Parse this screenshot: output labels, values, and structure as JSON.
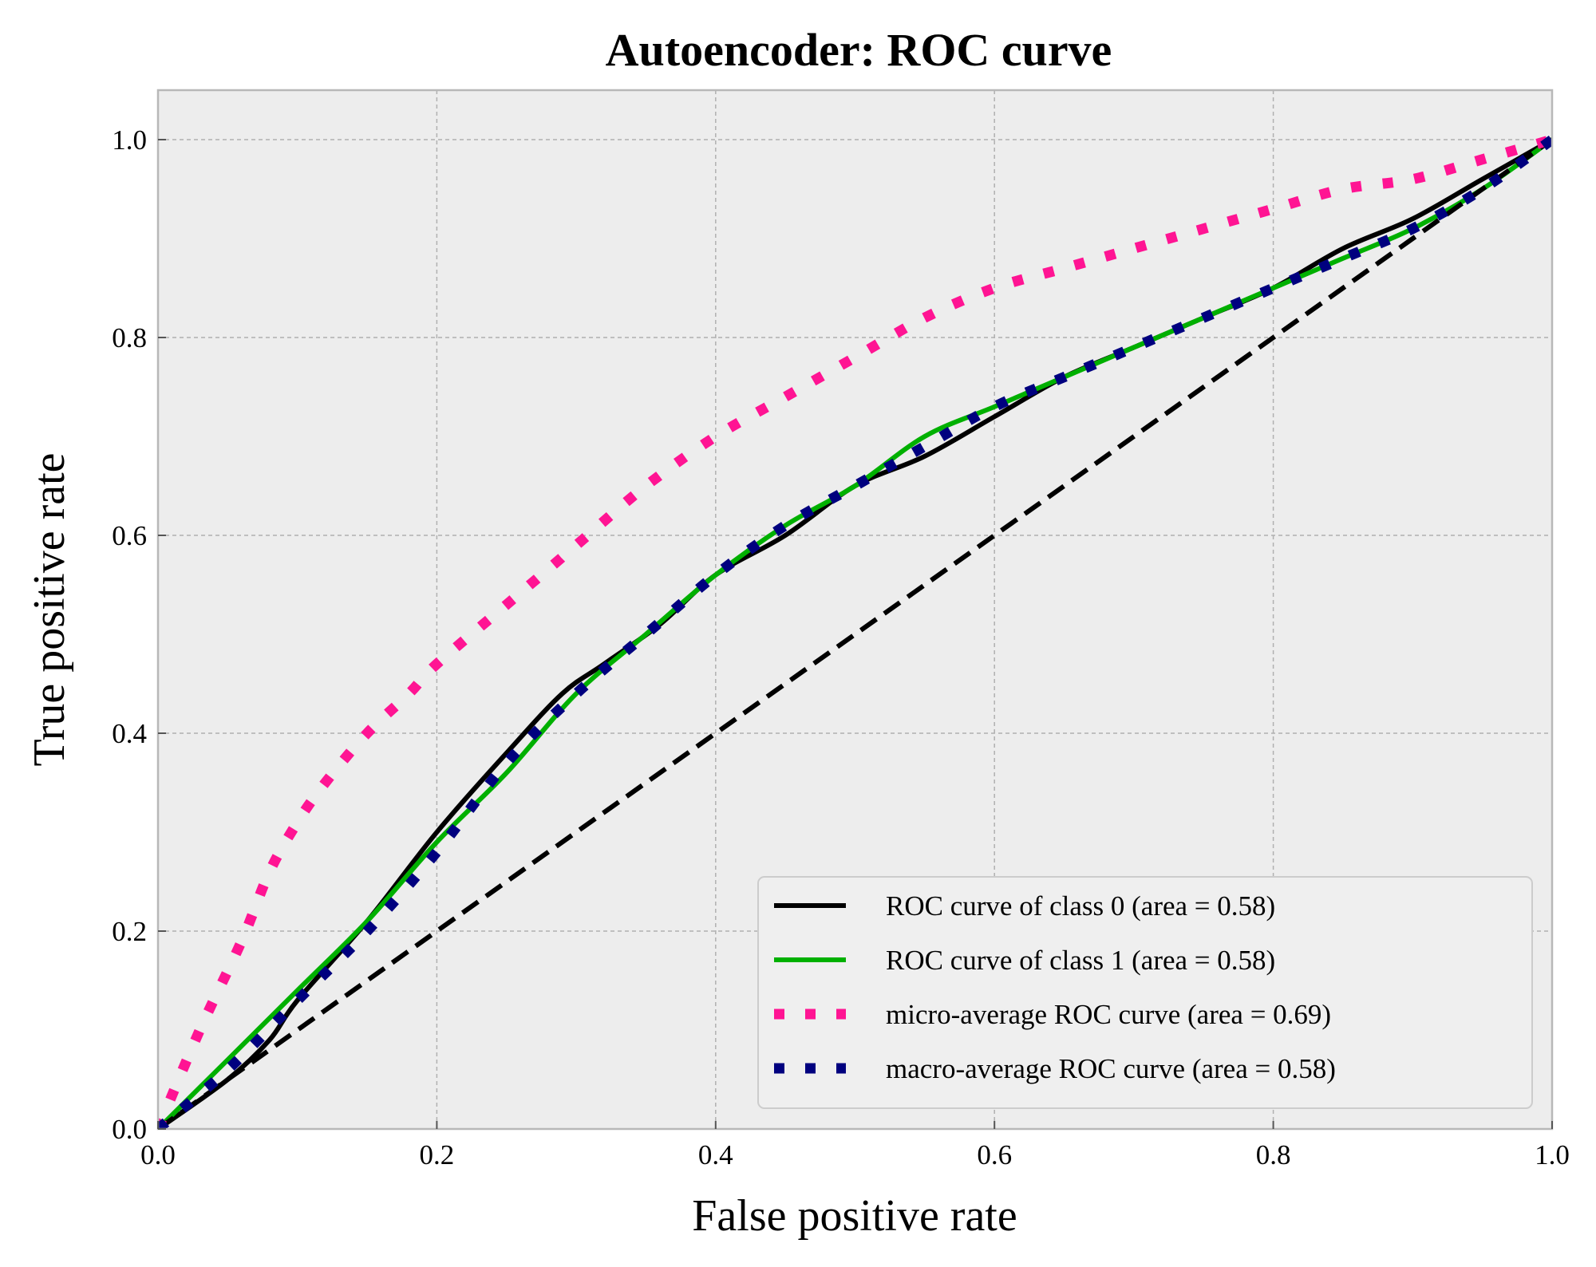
{
  "chart_data": {
    "type": "line",
    "title": "Autoencoder: ROC curve",
    "xlabel": "False positive rate",
    "ylabel": "True positive rate",
    "xlim": [
      0.0,
      1.0
    ],
    "ylim": [
      0.0,
      1.05
    ],
    "xticks": [
      "0.0",
      "0.2",
      "0.4",
      "0.6",
      "0.8",
      "1.0"
    ],
    "yticks": [
      "0.0",
      "0.2",
      "0.4",
      "0.6",
      "0.8",
      "1.0"
    ],
    "grid": true,
    "legend_position": "lower-right",
    "background_color": "#ededed",
    "series": [
      {
        "name": "ROC curve of class 0 (area = 0.58)",
        "color": "#000000",
        "style": "solid",
        "x": [
          0.0,
          0.05,
          0.08,
          0.1,
          0.15,
          0.2,
          0.25,
          0.29,
          0.32,
          0.36,
          0.4,
          0.45,
          0.5,
          0.55,
          0.6,
          0.65,
          0.7,
          0.75,
          0.8,
          0.85,
          0.9,
          0.95,
          1.0
        ],
        "y": [
          0.0,
          0.05,
          0.09,
          0.13,
          0.21,
          0.3,
          0.38,
          0.44,
          0.47,
          0.51,
          0.56,
          0.6,
          0.65,
          0.68,
          0.72,
          0.76,
          0.79,
          0.82,
          0.85,
          0.89,
          0.92,
          0.96,
          1.0
        ]
      },
      {
        "name": "ROC curve of class 1 (area = 0.58)",
        "color": "#00b000",
        "style": "solid",
        "x": [
          0.0,
          0.05,
          0.1,
          0.15,
          0.2,
          0.25,
          0.3,
          0.35,
          0.4,
          0.45,
          0.5,
          0.55,
          0.6,
          0.65,
          0.7,
          0.75,
          0.8,
          0.85,
          0.9,
          0.95,
          1.0
        ],
        "y": [
          0.0,
          0.07,
          0.14,
          0.21,
          0.29,
          0.36,
          0.44,
          0.5,
          0.56,
          0.61,
          0.65,
          0.7,
          0.73,
          0.76,
          0.79,
          0.82,
          0.85,
          0.88,
          0.91,
          0.95,
          1.0
        ]
      },
      {
        "name": "micro-average ROC curve (area = 0.69)",
        "color": "#ff1493",
        "style": "dotted",
        "x": [
          0.0,
          0.03,
          0.06,
          0.08,
          0.1,
          0.12,
          0.15,
          0.18,
          0.2,
          0.25,
          0.3,
          0.35,
          0.4,
          0.45,
          0.5,
          0.55,
          0.6,
          0.65,
          0.7,
          0.75,
          0.8,
          0.85,
          0.9,
          0.95,
          1.0
        ],
        "y": [
          0.0,
          0.1,
          0.19,
          0.26,
          0.31,
          0.35,
          0.4,
          0.44,
          0.47,
          0.53,
          0.59,
          0.65,
          0.7,
          0.74,
          0.78,
          0.82,
          0.85,
          0.87,
          0.89,
          0.91,
          0.93,
          0.95,
          0.96,
          0.98,
          1.0
        ]
      },
      {
        "name": "macro-average ROC curve (area = 0.58)",
        "color": "#00007f",
        "style": "dotted",
        "x": [
          0.0,
          0.05,
          0.1,
          0.15,
          0.2,
          0.25,
          0.3,
          0.35,
          0.4,
          0.45,
          0.5,
          0.55,
          0.6,
          0.65,
          0.7,
          0.75,
          0.8,
          0.85,
          0.9,
          0.95,
          1.0
        ],
        "y": [
          0.0,
          0.06,
          0.13,
          0.2,
          0.28,
          0.37,
          0.44,
          0.5,
          0.56,
          0.61,
          0.65,
          0.69,
          0.73,
          0.76,
          0.79,
          0.82,
          0.85,
          0.88,
          0.91,
          0.95,
          1.0
        ]
      },
      {
        "name": "",
        "color": "#000000",
        "style": "dashed",
        "x": [
          0.0,
          1.0
        ],
        "y": [
          0.0,
          1.0
        ]
      }
    ]
  }
}
